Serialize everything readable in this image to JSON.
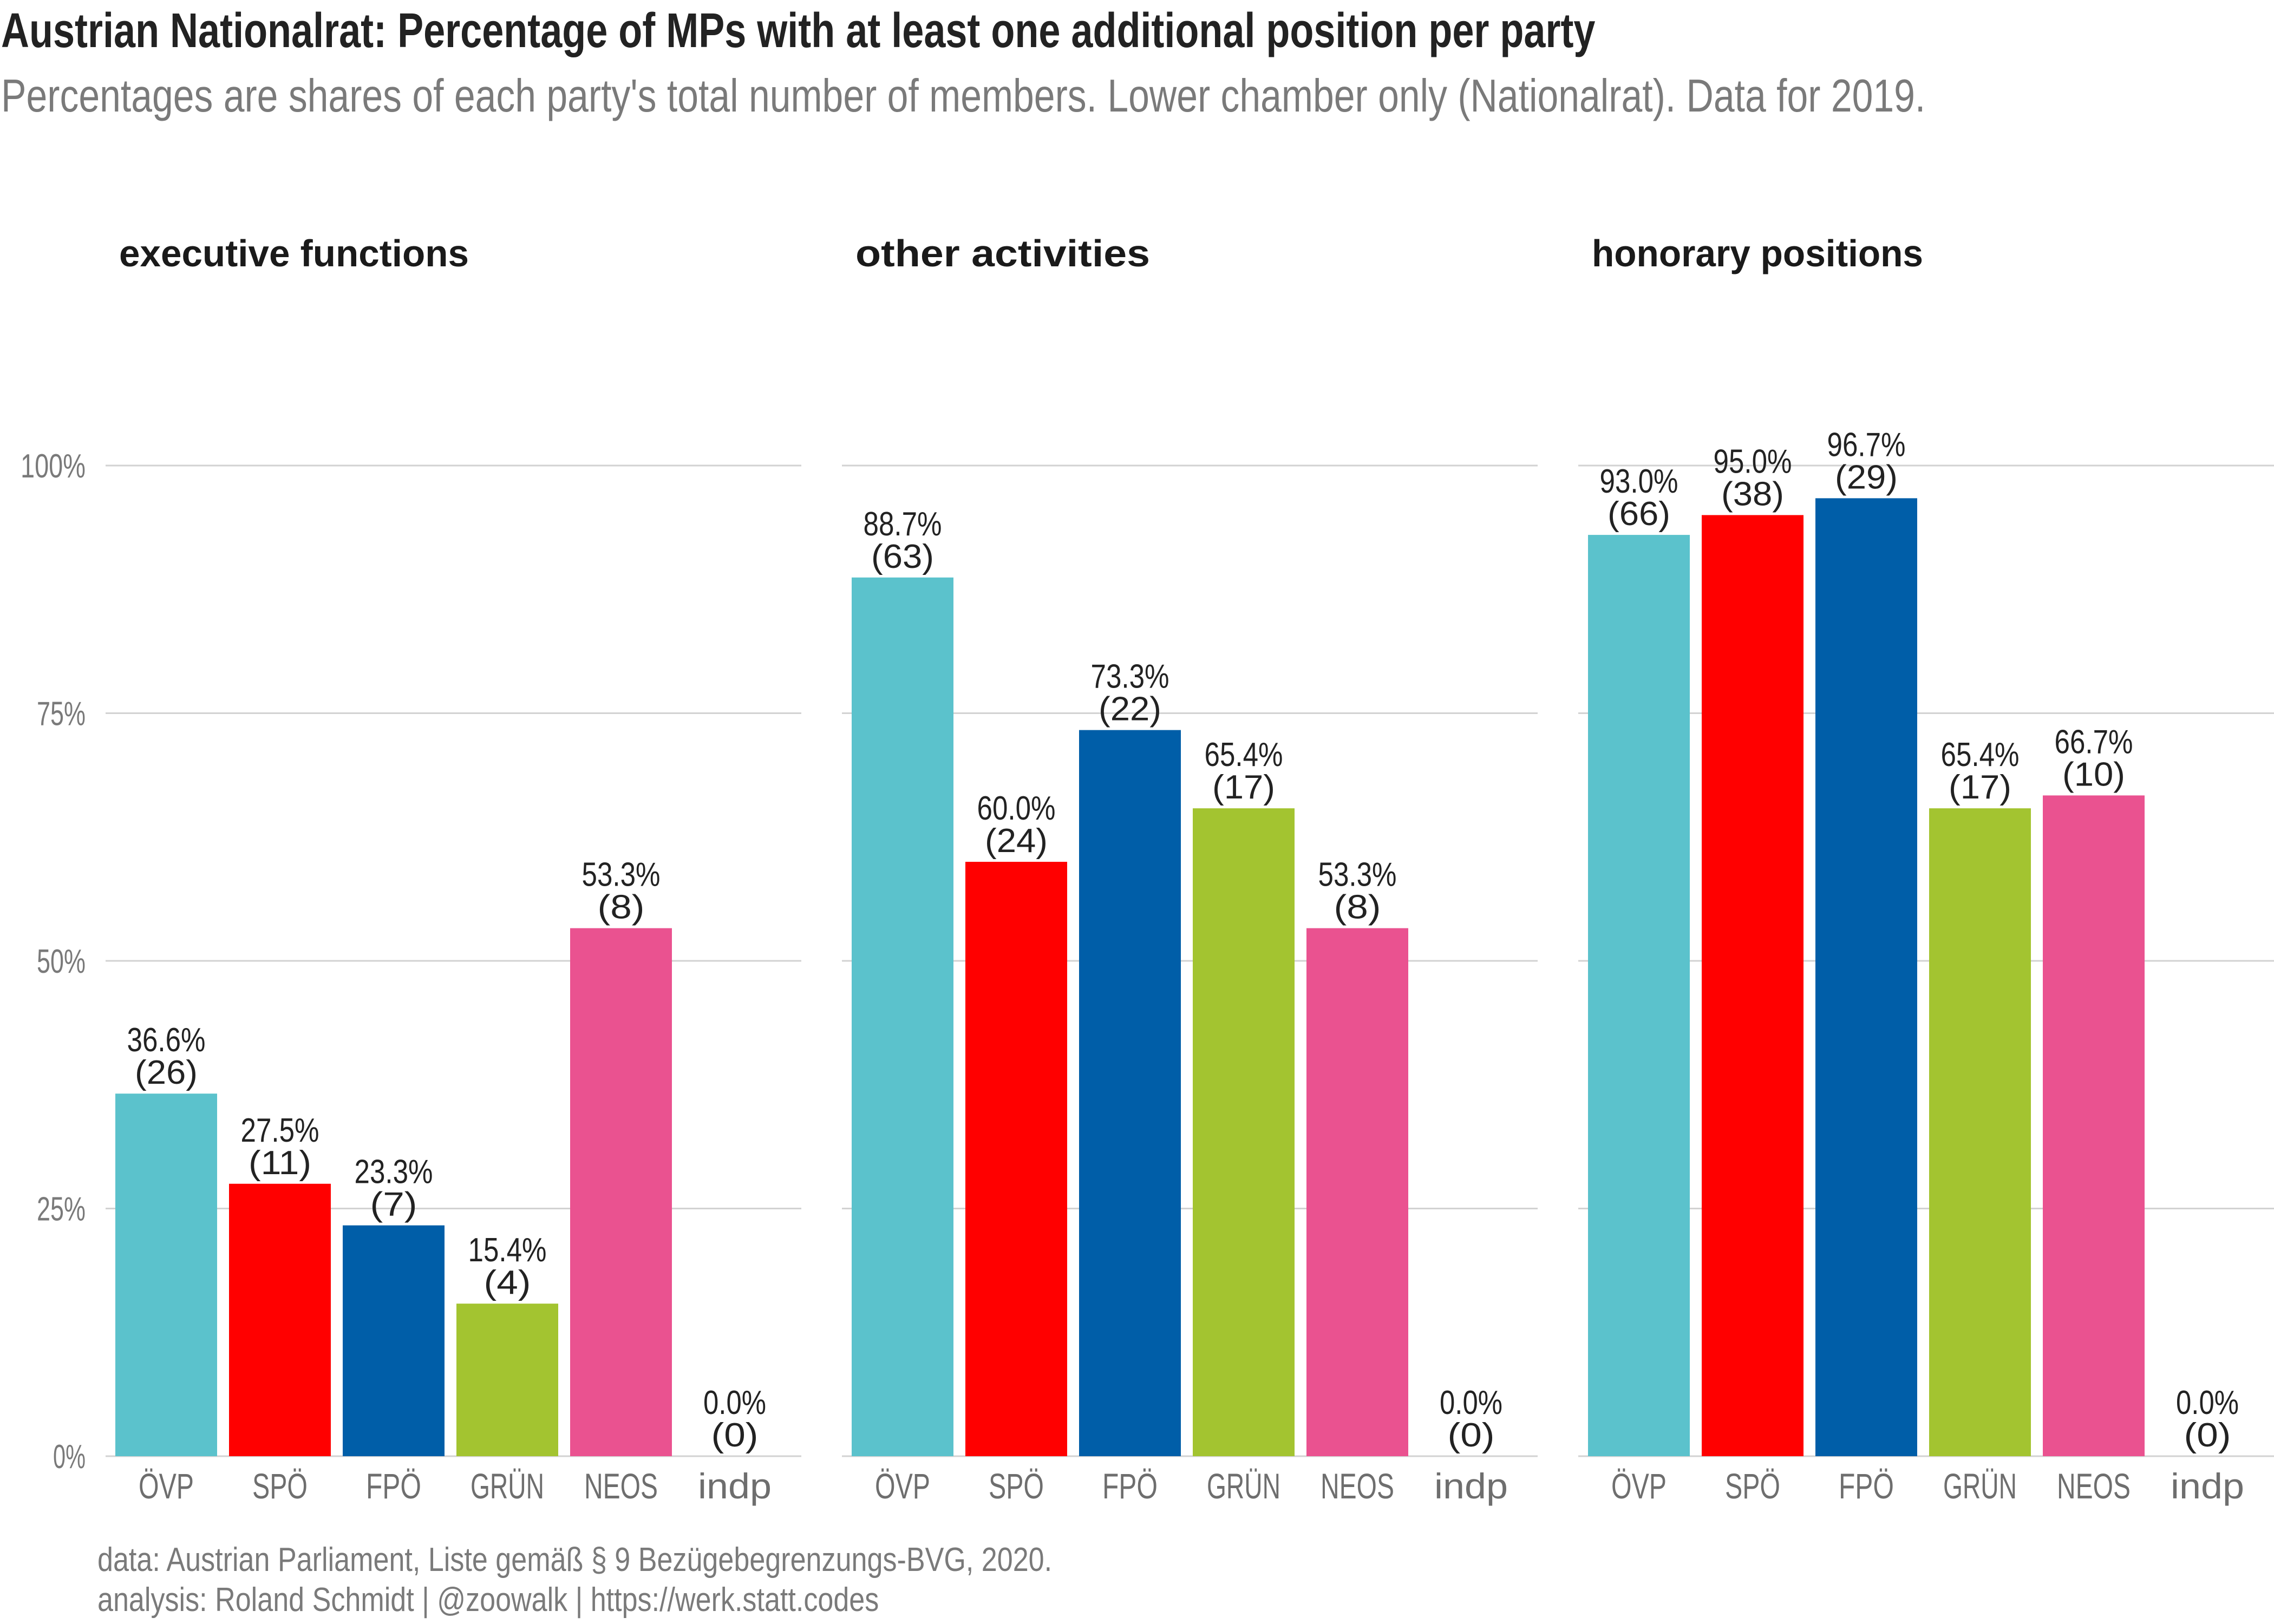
{
  "title": "Austrian Nationalrat: Percentage of MPs with at least one additional position per party",
  "subtitle": "Percentages are shares of each party's total number of members. Lower chamber only (Nationalrat). Data for 2019.",
  "caption": {
    "line1": "data: Austrian Parliament, Liste gemäß § 9 Bezügebegrenzungs-BVG, 2020.",
    "line2": "analysis: Roland Schmidt | @zoowalk | https://werk.statt.codes"
  },
  "chart_data": {
    "type": "bar",
    "categories": [
      "ÖVP",
      "SPÖ",
      "FPÖ",
      "GRÜN",
      "NEOS",
      "indp"
    ],
    "colors": [
      "#5bc2cc",
      "#ff0000",
      "#005ea8",
      "#a3c430",
      "#ea5290",
      "#999999"
    ],
    "ylim": [
      0,
      100
    ],
    "yticks": [
      "0%",
      "25%",
      "50%",
      "75%",
      "100%"
    ],
    "grid": true,
    "panels": [
      {
        "title": "executive functions",
        "values": [
          36.6,
          27.5,
          23.3,
          15.4,
          53.3,
          0.0
        ],
        "labels": [
          "36.6%",
          "27.5%",
          "23.3%",
          "15.4%",
          "53.3%",
          "0.0%"
        ],
        "counts": [
          "(26)",
          "(11)",
          "(7)",
          "(4)",
          "(8)",
          "(0)"
        ]
      },
      {
        "title": "other activities",
        "values": [
          88.7,
          60.0,
          73.3,
          65.4,
          53.3,
          0.0
        ],
        "labels": [
          "88.7%",
          "60.0%",
          "73.3%",
          "65.4%",
          "53.3%",
          "0.0%"
        ],
        "counts": [
          "(63)",
          "(24)",
          "(22)",
          "(17)",
          "(8)",
          "(0)"
        ]
      },
      {
        "title": "honorary positions",
        "values": [
          93.0,
          95.0,
          96.7,
          65.4,
          66.7,
          0.0
        ],
        "labels": [
          "93.0%",
          "95.0%",
          "96.7%",
          "65.4%",
          "66.7%",
          "0.0%"
        ],
        "counts": [
          "(66)",
          "(38)",
          "(29)",
          "(17)",
          "(10)",
          "(0)"
        ]
      }
    ]
  }
}
